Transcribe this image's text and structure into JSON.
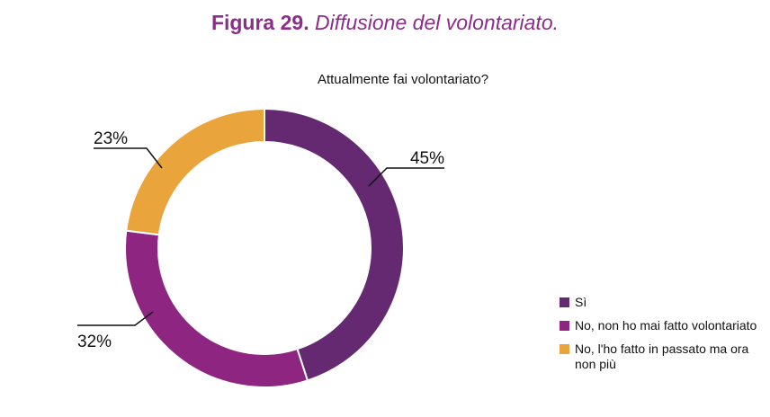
{
  "figure": {
    "label": "Figura 29.",
    "caption": "Diffusione del volontariato."
  },
  "chart_data": {
    "type": "pie",
    "donut": true,
    "title": "Attualmente fai volontariato?",
    "slices": [
      {
        "label": "Sì",
        "value": 45,
        "value_label": "45%",
        "color": "#642970"
      },
      {
        "label": "No, non ho mai fatto volontariato",
        "value": 32,
        "value_label": "32%",
        "color": "#8e2580"
      },
      {
        "label": "No, l'ho fatto in passato ma ora non più",
        "value": 23,
        "value_label": "23%",
        "color": "#e9a43c"
      }
    ],
    "legend_position": "bottom-right"
  }
}
